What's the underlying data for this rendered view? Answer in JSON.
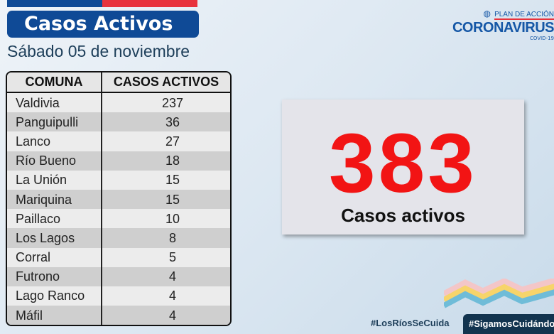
{
  "header": {
    "title": "Casos Activos",
    "date": "Sábado 05 de noviembre"
  },
  "logo": {
    "top": "PLAN DE ACCIÓN",
    "main": "CORONAVIRUS",
    "sub": "COVID-19"
  },
  "table": {
    "headers": [
      "COMUNA",
      "CASOS ACTIVOS"
    ],
    "rows": [
      [
        "Valdivia",
        "237"
      ],
      [
        "Panguipulli",
        "36"
      ],
      [
        "Lanco",
        "27"
      ],
      [
        "Río Bueno",
        "18"
      ],
      [
        "La Unión",
        "15"
      ],
      [
        "Mariquina",
        "15"
      ],
      [
        "Paillaco",
        "10"
      ],
      [
        "Los Lagos",
        "8"
      ],
      [
        "Corral",
        "5"
      ],
      [
        "Futrono",
        "4"
      ],
      [
        "Lago Ranco",
        "4"
      ],
      [
        "Máfil",
        "4"
      ]
    ]
  },
  "total": {
    "value": "383",
    "label": "Casos activos"
  },
  "hashtags": [
    "#LosRíosSeCuida",
    "#SigamosCuidándonos"
  ],
  "colors": {
    "brand_blue": "#0f4a96",
    "accent_red": "#f21414",
    "flag_red": "#e8323c"
  }
}
